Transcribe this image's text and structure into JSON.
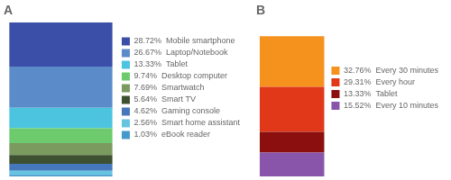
{
  "chart_data": [
    {
      "type": "bar",
      "title": "A",
      "stacked": true,
      "grid": false,
      "legend": "right",
      "tick_labels": false,
      "categories": [
        null
      ],
      "ylim": [
        0,
        100
      ],
      "series": [
        {
          "name": "28.72%  Mobile smartphone",
          "color": "#3b4ea8",
          "values": [
            28.72
          ]
        },
        {
          "name": "26.67%  Laptop/Notebook",
          "color": "#5b8bc8",
          "values": [
            26.67
          ]
        },
        {
          "name": "13.33%  Tablet",
          "color": "#4cc4e0",
          "values": [
            13.33
          ]
        },
        {
          "name": "9.74%  Desktop computer",
          "color": "#6dca6d",
          "values": [
            9.74
          ]
        },
        {
          "name": "7.69%  Smartwatch",
          "color": "#7a9a60",
          "values": [
            7.69
          ]
        },
        {
          "name": "5.64%  Smart TV",
          "color": "#3d5030",
          "values": [
            5.64
          ]
        },
        {
          "name": "4.62%  Gaming console",
          "color": "#4477bb",
          "values": [
            4.62
          ]
        },
        {
          "name": "2.56%  Smart home assistant",
          "color": "#66c4e0",
          "values": [
            2.56
          ]
        },
        {
          "name": "1.03%  eBook reader",
          "color": "#4499cc",
          "values": [
            1.03
          ]
        }
      ]
    },
    {
      "type": "bar",
      "title": "B",
      "stacked": true,
      "grid": false,
      "legend": "right",
      "tick_labels": false,
      "categories": [
        null
      ],
      "ylim": [
        0,
        100
      ],
      "series": [
        {
          "name": "32.76%  Every 30 minutes",
          "color": "#f5921e",
          "values": [
            32.76
          ]
        },
        {
          "name": "29.31%  Every hour",
          "color": "#e03818",
          "values": [
            29.31
          ]
        },
        {
          "name": "13.33%  Tablet",
          "color": "#8b0f0f",
          "values": [
            13.33
          ]
        },
        {
          "name": "15.52%  Every 10 minutes",
          "color": "#8855aa",
          "values": [
            15.52
          ]
        }
      ]
    }
  ]
}
